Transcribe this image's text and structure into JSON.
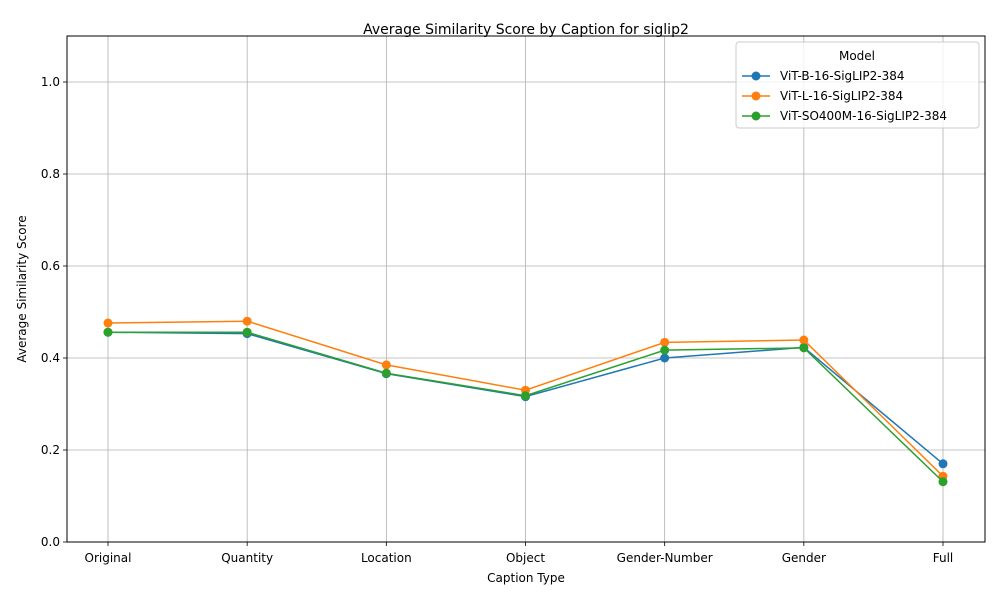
{
  "chart_data": {
    "type": "line",
    "title": "Average Similarity Score by Caption for siglip2",
    "xlabel": "Caption Type",
    "ylabel": "Average Similarity Score",
    "categories": [
      "Original",
      "Quantity",
      "Location",
      "Object",
      "Gender-Number",
      "Gender",
      "Full"
    ],
    "ylim": [
      0,
      1.1
    ],
    "yticks": [
      0.0,
      0.2,
      0.4,
      0.6,
      0.8,
      1.0
    ],
    "ytick_labels": [
      "0.0",
      "0.2",
      "0.4",
      "0.6",
      "0.8",
      "1.0"
    ],
    "grid": true,
    "legend": {
      "title": "Model",
      "placement": "top-right"
    },
    "series": [
      {
        "name": "ViT-B-16-SigLIP2-384",
        "color": "#1f77b4",
        "values": [
          0.456,
          0.453,
          0.366,
          0.316,
          0.4,
          0.423,
          0.17
        ]
      },
      {
        "name": "ViT-L-16-SigLIP2-384",
        "color": "#ff7f0e",
        "values": [
          0.476,
          0.48,
          0.385,
          0.33,
          0.434,
          0.439,
          0.143
        ]
      },
      {
        "name": "ViT-SO400M-16-SigLIP2-384",
        "color": "#2ca02c",
        "values": [
          0.456,
          0.456,
          0.367,
          0.318,
          0.417,
          0.422,
          0.131
        ]
      }
    ]
  }
}
